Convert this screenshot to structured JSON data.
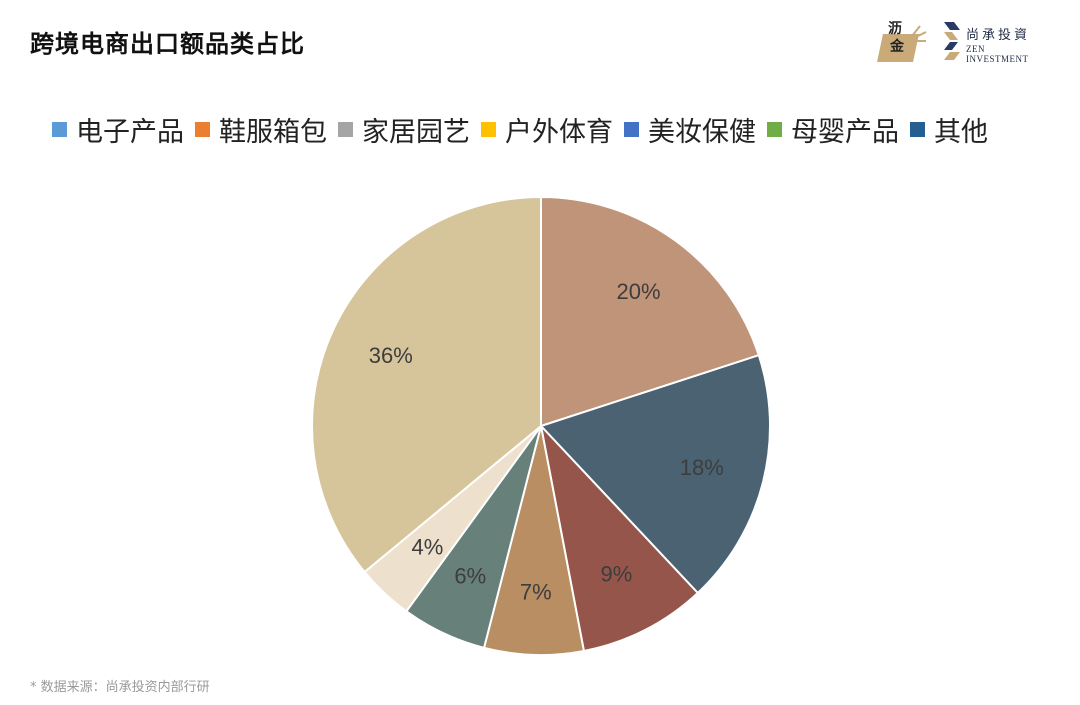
{
  "title": "跨境电商出口额品类占比",
  "logos": {
    "lijin": {
      "line1": "沥",
      "line2": "金"
    },
    "zen": {
      "cn": "尚承投資",
      "en": "ZEN INVESTMENT"
    }
  },
  "source": "* 数据来源：尚承投资内部行研",
  "chart_data": {
    "type": "pie",
    "legend_placement": "top",
    "legend": [
      {
        "label": "电子产品",
        "color": "#5b9bd5"
      },
      {
        "label": "鞋服箱包",
        "color": "#ed7d31"
      },
      {
        "label": "家居园艺",
        "color": "#a5a5a5"
      },
      {
        "label": "户外体育",
        "color": "#ffc000"
      },
      {
        "label": "美妆保健",
        "color": "#4472c4"
      },
      {
        "label": "母婴产品",
        "color": "#70ad47"
      },
      {
        "label": "其他",
        "color": "#255e91"
      }
    ],
    "slices": [
      {
        "value": 20,
        "label": "20%",
        "color": "#c09478"
      },
      {
        "value": 18,
        "label": "18%",
        "color": "#4b6272"
      },
      {
        "value": 9,
        "label": "9%",
        "color": "#96554a"
      },
      {
        "value": 7,
        "label": "7%",
        "color": "#b88e62"
      },
      {
        "value": 6,
        "label": "6%",
        "color": "#67807a"
      },
      {
        "value": 4,
        "label": "4%",
        "color": "#ede1cd"
      },
      {
        "value": 36,
        "label": "36%",
        "color": "#d6c49a"
      }
    ]
  }
}
